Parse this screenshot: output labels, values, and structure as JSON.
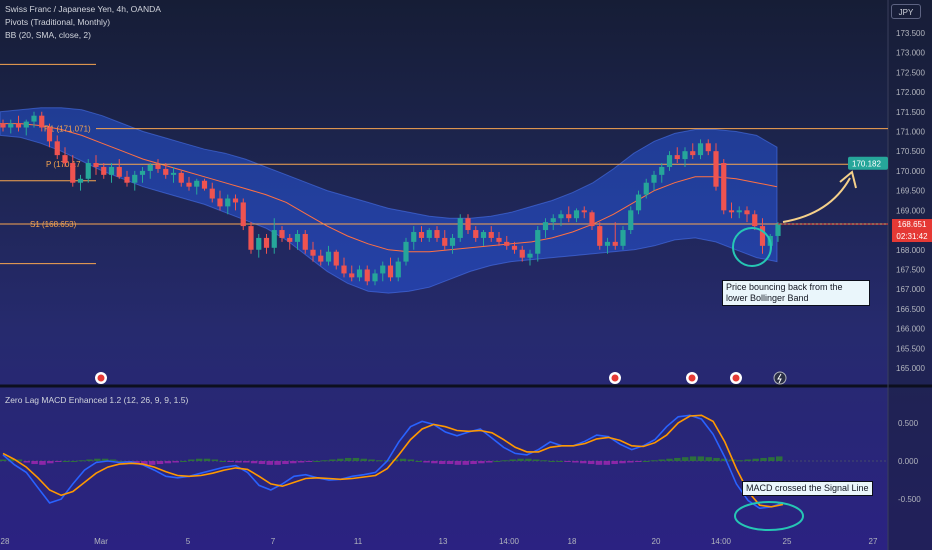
{
  "header": {
    "title": "Swiss Franc / Japanese Yen, 4h, OANDA",
    "pivots_label": "Pivots (Traditional, Monthly)",
    "bb_label": "BB (20, SMA, close, 2)",
    "currency": "JPY"
  },
  "pivots": {
    "r1_label": "R1 (171.071)",
    "p_label": "P (170.17",
    "s1_label": "S1 (168.653)"
  },
  "annotations": {
    "target_price": "170.182",
    "price_note_line1": "Price bouncing back from the",
    "price_note_line2": "lower Bollinger Band",
    "macd_note": "MACD crossed the Signal Line"
  },
  "price_axis": {
    "current_price": "168.651",
    "countdown": "02:31:42"
  },
  "macd_title": "Zero Lag MACD Enhanced 1.2 (12, 26, 9, 9, 1.5)",
  "colors": {
    "up": "#26a69a",
    "down": "#ef5350",
    "band_fill": "#2962ff",
    "pivot": "#f7a550",
    "macd_line": "#2962ff",
    "signal_line": "#ff9800",
    "circle": "#26c6b4",
    "hist_pos": "#2e7d32",
    "hist_neg": "#9c27b0"
  },
  "chart_data": [
    {
      "type": "candlestick",
      "title": "Swiss Franc / Japanese Yen, 4h, OANDA",
      "ylim": [
        164.9,
        173.7
      ],
      "y_ticks": [
        "173.500",
        "173.000",
        "172.500",
        "172.000",
        "171.500",
        "171.000",
        "170.500",
        "170.000",
        "169.500",
        "169.000",
        "168.500",
        "168.000",
        "167.500",
        "167.000",
        "166.500",
        "166.000",
        "165.500",
        "165.000"
      ],
      "x_ticks": [
        "28",
        "Mar",
        "5",
        "7",
        "11",
        "13",
        "14:00",
        "18",
        "20",
        "14:00",
        "25",
        "27"
      ],
      "candles": [
        [
          171.2,
          171.3,
          171.0,
          171.1
        ],
        [
          171.1,
          171.3,
          170.95,
          171.2
        ],
        [
          171.2,
          171.4,
          171.0,
          171.1
        ],
        [
          171.1,
          171.3,
          170.9,
          171.25
        ],
        [
          171.25,
          171.5,
          171.1,
          171.4
        ],
        [
          171.4,
          171.5,
          171.0,
          171.1
        ],
        [
          171.1,
          171.2,
          170.6,
          170.75
        ],
        [
          170.75,
          170.9,
          170.3,
          170.4
        ],
        [
          170.4,
          170.6,
          170.1,
          170.2
        ],
        [
          170.2,
          170.4,
          169.6,
          169.7
        ],
        [
          169.7,
          169.9,
          169.5,
          169.8
        ],
        [
          169.8,
          170.3,
          169.7,
          170.2
        ],
        [
          170.2,
          170.4,
          169.9,
          170.1
        ],
        [
          170.1,
          170.2,
          169.8,
          169.9
        ],
        [
          169.9,
          170.2,
          169.7,
          170.1
        ],
        [
          170.1,
          170.3,
          169.8,
          169.85
        ],
        [
          169.85,
          170.0,
          169.6,
          169.7
        ],
        [
          169.7,
          170.0,
          169.5,
          169.9
        ],
        [
          169.9,
          170.1,
          169.7,
          170.0
        ],
        [
          170.0,
          170.2,
          169.8,
          170.15
        ],
        [
          170.15,
          170.3,
          169.95,
          170.05
        ],
        [
          170.05,
          170.2,
          169.8,
          169.9
        ],
        [
          169.9,
          170.1,
          169.7,
          169.95
        ],
        [
          169.95,
          170.0,
          169.6,
          169.7
        ],
        [
          169.7,
          169.85,
          169.5,
          169.6
        ],
        [
          169.6,
          169.8,
          169.4,
          169.75
        ],
        [
          169.75,
          169.8,
          169.5,
          169.55
        ],
        [
          169.55,
          169.7,
          169.2,
          169.3
        ],
        [
          169.3,
          169.5,
          169.0,
          169.1
        ],
        [
          169.1,
          169.4,
          168.9,
          169.3
        ],
        [
          169.3,
          169.4,
          169.0,
          169.2
        ],
        [
          169.2,
          169.3,
          168.5,
          168.6
        ],
        [
          168.6,
          168.7,
          167.9,
          168.0
        ],
        [
          168.0,
          168.4,
          167.8,
          168.3
        ],
        [
          168.3,
          168.4,
          167.9,
          168.05
        ],
        [
          168.05,
          168.8,
          167.9,
          168.5
        ],
        [
          168.5,
          168.6,
          168.2,
          168.3
        ],
        [
          168.3,
          168.4,
          168.0,
          168.2
        ],
        [
          168.2,
          168.5,
          168.0,
          168.4
        ],
        [
          168.4,
          168.5,
          167.9,
          168.0
        ],
        [
          168.0,
          168.2,
          167.7,
          167.85
        ],
        [
          167.85,
          168.0,
          167.6,
          167.7
        ],
        [
          167.7,
          168.1,
          167.6,
          167.95
        ],
        [
          167.95,
          168.0,
          167.5,
          167.6
        ],
        [
          167.6,
          167.8,
          167.3,
          167.4
        ],
        [
          167.4,
          167.6,
          167.2,
          167.3
        ],
        [
          167.3,
          167.6,
          167.2,
          167.5
        ],
        [
          167.5,
          167.6,
          167.1,
          167.2
        ],
        [
          167.2,
          167.5,
          167.1,
          167.4
        ],
        [
          167.4,
          167.7,
          167.2,
          167.6
        ],
        [
          167.6,
          167.8,
          167.2,
          167.3
        ],
        [
          167.3,
          167.8,
          167.2,
          167.7
        ],
        [
          167.7,
          168.3,
          167.6,
          168.2
        ],
        [
          168.2,
          168.6,
          168.0,
          168.45
        ],
        [
          168.45,
          168.6,
          168.2,
          168.3
        ],
        [
          168.3,
          168.55,
          168.2,
          168.5
        ],
        [
          168.5,
          168.6,
          168.2,
          168.3
        ],
        [
          168.3,
          168.5,
          168.0,
          168.1
        ],
        [
          168.1,
          168.4,
          167.9,
          168.3
        ],
        [
          168.3,
          168.9,
          168.2,
          168.8
        ],
        [
          168.8,
          168.9,
          168.4,
          168.5
        ],
        [
          168.5,
          168.6,
          168.2,
          168.3
        ],
        [
          168.3,
          168.5,
          168.1,
          168.45
        ],
        [
          168.45,
          168.6,
          168.2,
          168.3
        ],
        [
          168.3,
          168.45,
          168.1,
          168.2
        ],
        [
          168.2,
          168.35,
          168.0,
          168.1
        ],
        [
          168.1,
          168.2,
          167.9,
          168.0
        ],
        [
          168.0,
          168.1,
          167.7,
          167.8
        ],
        [
          167.8,
          168.0,
          167.6,
          167.9
        ],
        [
          167.9,
          168.6,
          167.7,
          168.5
        ],
        [
          168.5,
          168.8,
          168.3,
          168.7
        ],
        [
          168.7,
          168.9,
          168.5,
          168.8
        ],
        [
          168.8,
          169.0,
          168.6,
          168.9
        ],
        [
          168.9,
          169.1,
          168.7,
          168.8
        ],
        [
          168.8,
          169.05,
          168.7,
          169.0
        ],
        [
          169.0,
          169.1,
          168.8,
          168.95
        ],
        [
          168.95,
          169.0,
          168.5,
          168.6
        ],
        [
          168.6,
          168.7,
          168.0,
          168.1
        ],
        [
          168.1,
          168.3,
          167.9,
          168.2
        ],
        [
          168.2,
          168.7,
          168.0,
          168.1
        ],
        [
          168.1,
          168.6,
          168.0,
          168.5
        ],
        [
          168.5,
          169.1,
          168.4,
          169.0
        ],
        [
          169.0,
          169.5,
          168.9,
          169.4
        ],
        [
          169.4,
          169.8,
          169.3,
          169.7
        ],
        [
          169.7,
          170.0,
          169.5,
          169.9
        ],
        [
          169.9,
          170.2,
          169.7,
          170.1
        ],
        [
          170.1,
          170.5,
          170.0,
          170.4
        ],
        [
          170.4,
          170.6,
          170.2,
          170.3
        ],
        [
          170.3,
          170.6,
          170.1,
          170.5
        ],
        [
          170.5,
          170.7,
          170.3,
          170.4
        ],
        [
          170.4,
          170.8,
          170.3,
          170.7
        ],
        [
          170.7,
          170.8,
          170.4,
          170.5
        ],
        [
          170.5,
          170.7,
          169.5,
          169.6
        ],
        [
          170.2,
          170.3,
          168.9,
          169.0
        ],
        [
          169.0,
          169.2,
          168.8,
          168.95
        ],
        [
          168.95,
          169.1,
          168.8,
          169.0
        ],
        [
          169.0,
          169.1,
          168.7,
          168.9
        ],
        [
          168.9,
          169.0,
          168.5,
          168.6
        ],
        [
          168.6,
          168.8,
          167.9,
          168.1
        ],
        [
          168.1,
          168.4,
          167.9,
          168.35
        ],
        [
          168.35,
          168.7,
          168.2,
          168.65
        ]
      ],
      "bollinger": {
        "upper": [
          171.5,
          171.55,
          171.6,
          171.6,
          171.55,
          171.4,
          171.2,
          171.0,
          170.85,
          170.7,
          170.55,
          170.45,
          170.3,
          170.1,
          169.9,
          169.7,
          169.5,
          169.35,
          169.2,
          169.05,
          168.95,
          168.85,
          168.8,
          168.8,
          168.85,
          168.95,
          169.1,
          169.25,
          169.45,
          169.7,
          170.05,
          170.45,
          170.75,
          170.95,
          171.05,
          171.05,
          171.0,
          170.9,
          170.6
        ],
        "middle": [
          171.2,
          171.2,
          171.15,
          171.05,
          170.9,
          170.7,
          170.5,
          170.3,
          170.15,
          170.0,
          169.85,
          169.7,
          169.55,
          169.4,
          169.2,
          168.9,
          168.6,
          168.35,
          168.15,
          168.0,
          167.95,
          167.95,
          168.0,
          168.05,
          168.1,
          168.15,
          168.2,
          168.3,
          168.45,
          168.65,
          168.9,
          169.2,
          169.5,
          169.7,
          169.85,
          169.85,
          169.8,
          169.7,
          169.6
        ],
        "lower": [
          170.9,
          170.85,
          170.7,
          170.5,
          170.25,
          170.0,
          169.8,
          169.6,
          169.45,
          169.3,
          169.15,
          168.95,
          168.75,
          168.55,
          168.25,
          167.85,
          167.45,
          167.15,
          166.95,
          166.9,
          166.95,
          167.05,
          167.25,
          167.45,
          167.6,
          167.7,
          167.75,
          167.8,
          167.85,
          167.9,
          167.95,
          168.0,
          168.1,
          168.25,
          168.3,
          168.2,
          168.0,
          167.8,
          167.7
        ]
      },
      "pivot_levels": {
        "R1": 171.071,
        "P": 170.17,
        "S1": 168.653
      },
      "extra_levels": [
        172.7,
        169.75,
        167.65
      ],
      "target": 170.182,
      "current": 168.651
    },
    {
      "type": "line",
      "title": "Zero Lag MACD Enhanced 1.2 (12, 26, 9, 9, 1.5)",
      "ylim": [
        -0.8,
        0.8
      ],
      "y_ticks": [
        "0.500",
        "0.000",
        "-0.500"
      ],
      "series": [
        {
          "values": [
            0.08,
            -0.05,
            -0.15,
            -0.35,
            -0.55,
            -0.5,
            -0.3,
            -0.12,
            -0.02,
            0.0,
            -0.02,
            -0.01,
            -0.05,
            -0.12,
            -0.2,
            -0.22,
            -0.2,
            -0.16,
            -0.12,
            -0.08,
            -0.06,
            -0.15,
            -0.32,
            -0.38,
            -0.3,
            -0.2,
            -0.18,
            -0.22,
            -0.25,
            -0.24,
            -0.2,
            -0.18,
            -0.15,
            0.0,
            0.25,
            0.45,
            0.52,
            0.48,
            0.38,
            0.33,
            0.38,
            0.42,
            0.3,
            0.18,
            0.1,
            0.08,
            0.15,
            0.25,
            0.2,
            0.2,
            0.26,
            0.34,
            0.32,
            0.22,
            0.15,
            0.2,
            0.28,
            0.45,
            0.58,
            0.6,
            0.55,
            0.35,
            0.05,
            -0.3,
            -0.52,
            -0.62,
            -0.6,
            -0.55
          ]
        },
        {
          "values": [
            0.1,
            0.02,
            -0.08,
            -0.22,
            -0.38,
            -0.45,
            -0.4,
            -0.28,
            -0.16,
            -0.08,
            -0.04,
            -0.03,
            -0.04,
            -0.08,
            -0.14,
            -0.19,
            -0.2,
            -0.19,
            -0.16,
            -0.12,
            -0.09,
            -0.11,
            -0.2,
            -0.3,
            -0.33,
            -0.28,
            -0.23,
            -0.22,
            -0.23,
            -0.24,
            -0.23,
            -0.21,
            -0.19,
            -0.1,
            0.08,
            0.28,
            0.42,
            0.48,
            0.45,
            0.4,
            0.39,
            0.4,
            0.37,
            0.28,
            0.18,
            0.12,
            0.12,
            0.18,
            0.2,
            0.2,
            0.23,
            0.29,
            0.31,
            0.27,
            0.2,
            0.19,
            0.24,
            0.34,
            0.5,
            0.59,
            0.6,
            0.52,
            0.25,
            -0.1,
            -0.4,
            -0.58,
            -0.6,
            -0.57
          ]
        }
      ],
      "histogram": [
        0.02,
        0.03,
        0.02,
        -0.02,
        -0.04,
        -0.05,
        -0.03,
        -0.01,
        0.0,
        0.0,
        0.01,
        0.02,
        0.03,
        0.03,
        0.02,
        0.0,
        -0.02,
        -0.04,
        -0.05,
        -0.05,
        -0.04,
        -0.03,
        -0.02,
        0.0,
        0.02,
        0.03,
        0.03,
        0.02,
        0.0,
        -0.01,
        -0.02,
        -0.02,
        -0.03,
        -0.04,
        -0.05,
        -0.05,
        -0.04,
        -0.03,
        -0.02,
        -0.01,
        0.0,
        0.01,
        0.02,
        0.03,
        0.04,
        0.04,
        0.03,
        0.02,
        0.01,
        0.01,
        0.02,
        0.03,
        0.02,
        0.0,
        -0.02,
        -0.03,
        -0.04,
        -0.04,
        -0.05,
        -0.05,
        -0.04,
        -0.03,
        -0.02,
        0.0,
        0.01,
        0.02,
        0.03,
        0.03,
        0.02,
        0.01,
        0.0,
        0.0,
        -0.01,
        -0.02,
        -0.03,
        -0.04,
        -0.05,
        -0.05,
        -0.04,
        -0.03,
        -0.02,
        -0.01,
        0.0,
        0.01,
        0.02,
        0.03,
        0.04,
        0.05,
        0.06,
        0.06,
        0.05,
        0.04,
        0.03,
        0.02,
        0.01,
        0.02,
        0.03,
        0.04,
        0.05,
        0.06
      ]
    }
  ]
}
